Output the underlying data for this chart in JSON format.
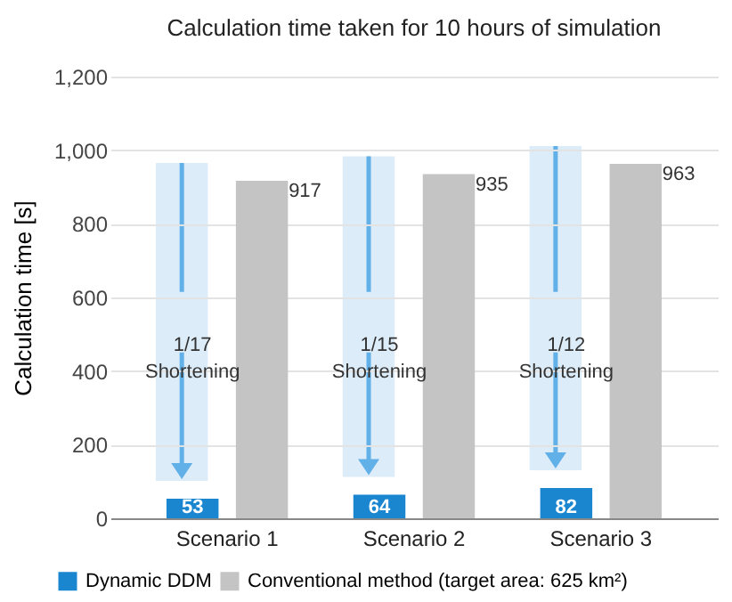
{
  "chart_data": {
    "type": "bar",
    "title": "Calculation time taken for 10 hours of simulation",
    "ylabel": "Calculation time [s]",
    "categories": [
      "Scenario 1",
      "Scenario 2",
      "Scenario 3"
    ],
    "series": [
      {
        "name": "Dynamic DDM",
        "color": "#1a86d0",
        "values": [
          53,
          64,
          82
        ]
      },
      {
        "name": "Conventional method (target area: 625 km²)",
        "color": "#c4c4c4",
        "values": [
          917,
          935,
          963
        ]
      }
    ],
    "ylim": [
      0,
      1200
    ],
    "yticks": [
      0,
      200,
      400,
      600,
      800,
      {
        "value": 1000,
        "label": "1,000"
      },
      {
        "value": 1200,
        "label": "1,200"
      }
    ],
    "grid": "y",
    "legend": "bottom",
    "data_labels": true,
    "annotations": [
      {
        "text": "1/17 Shortening",
        "x": "Scenario 1",
        "y": 470
      },
      {
        "text": "1/15 Shortening",
        "x": "Scenario 2",
        "y": 470
      },
      {
        "text": "1/12 Shortening",
        "x": "Scenario 3",
        "y": 470
      }
    ]
  }
}
